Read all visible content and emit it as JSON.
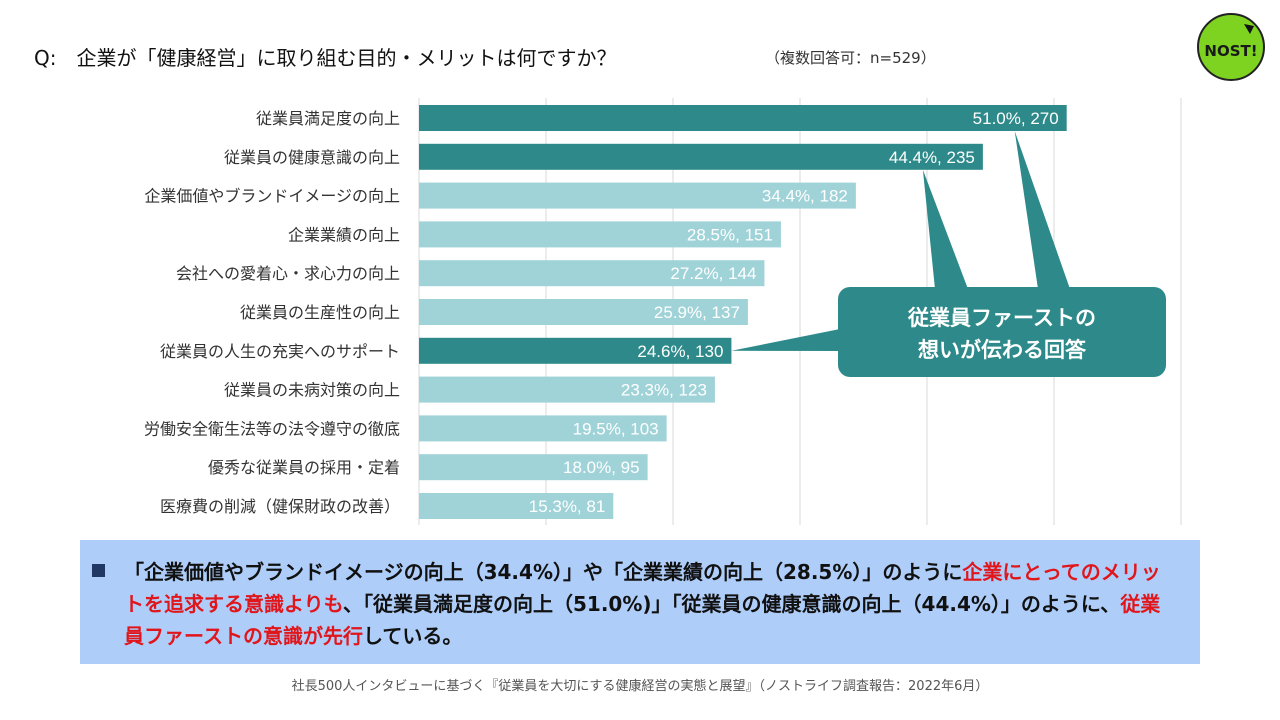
{
  "header": {
    "question": "Q:　企業が「健康経営」に取り組む目的・メリットは何ですか？",
    "note": "（複数回答可：n=529）",
    "logo_text": "NOST!"
  },
  "chart_data": {
    "type": "bar",
    "orientation": "horizontal",
    "title": "企業が「健康経営」に取り組む目的・メリットは何ですか？",
    "xlim": [
      0,
      60
    ],
    "grid": true,
    "categories": [
      "従業員満足度の向上",
      "従業員の健康意識の向上",
      "企業価値やブランドイメージの向上",
      "企業業績の向上",
      "会社への愛着心・求心力の向上",
      "従業員の生産性の向上",
      "従業員の人生の充実へのサポート",
      "従業員の未病対策の向上",
      "労働安全衛生法等の法令遵守の徹底",
      "優秀な従業員の採用・定着",
      "医療費の削減（健保財政の改善）"
    ],
    "values": [
      51.0,
      44.4,
      34.4,
      28.5,
      27.2,
      25.9,
      24.6,
      23.3,
      19.5,
      18.0,
      15.3
    ],
    "counts": [
      270,
      235,
      182,
      151,
      144,
      137,
      130,
      123,
      103,
      95,
      81
    ],
    "data_labels": [
      "51.0%, 270",
      "44.4%, 235",
      "34.4%, 182",
      "28.5%, 151",
      "27.2%, 144",
      "25.9%, 137",
      "24.6%, 130",
      "23.3%, 123",
      "19.5%, 103",
      "18.0%, 95",
      "15.3%, 81"
    ],
    "highlighted": [
      true,
      true,
      false,
      false,
      false,
      false,
      true,
      false,
      false,
      false,
      false
    ],
    "colors": {
      "highlight": "#2e8a8a",
      "normal": "#a0d3d8",
      "grid": "#d9d9d9"
    },
    "callout": {
      "line1": "従業員ファーストの",
      "line2": "想いが伝わる回答",
      "color": "#2e8a8a"
    }
  },
  "summary": {
    "part1": "「企業価値やブランドイメージの向上（34.4%）」や「企業業績の向上（28.5%）」のように",
    "hl1": "企業にとってのメリットを追求する意識よりも",
    "part2": "、「従業員満足度の向上（51.0%)」「従業員の健康意識の向上（44.4%）」のように、",
    "hl2": "従業員ファーストの意識が先行",
    "part3": "している。"
  },
  "footer": "社長500人インタビューに基づく『従業員を大切にする健康経営の実態と展望』（ノストライフ調査報告：2022年6月）"
}
